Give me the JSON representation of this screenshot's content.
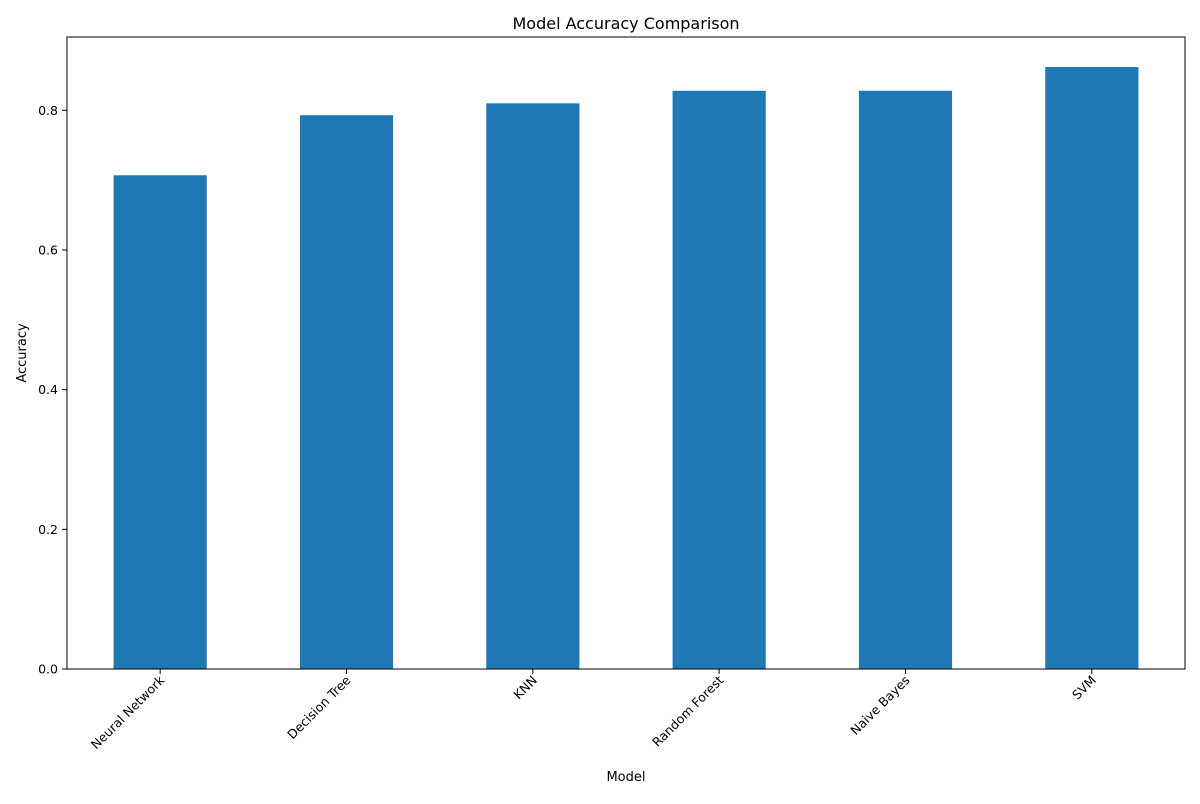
{
  "chart_data": {
    "type": "bar",
    "title": "Model Accuracy Comparison",
    "xlabel": "Model",
    "ylabel": "Accuracy",
    "categories": [
      "Neural Network",
      "Decision Tree",
      "KNN",
      "Random Forest",
      "Naive Bayes",
      "SVM"
    ],
    "values": [
      0.707,
      0.793,
      0.81,
      0.828,
      0.828,
      0.862
    ],
    "ylim": [
      0,
      0.905
    ],
    "yticks": [
      "0.0",
      "0.2",
      "0.4",
      "0.6",
      "0.8"
    ],
    "bar_color": "#1f77b4",
    "grid": false,
    "legend": "none"
  }
}
